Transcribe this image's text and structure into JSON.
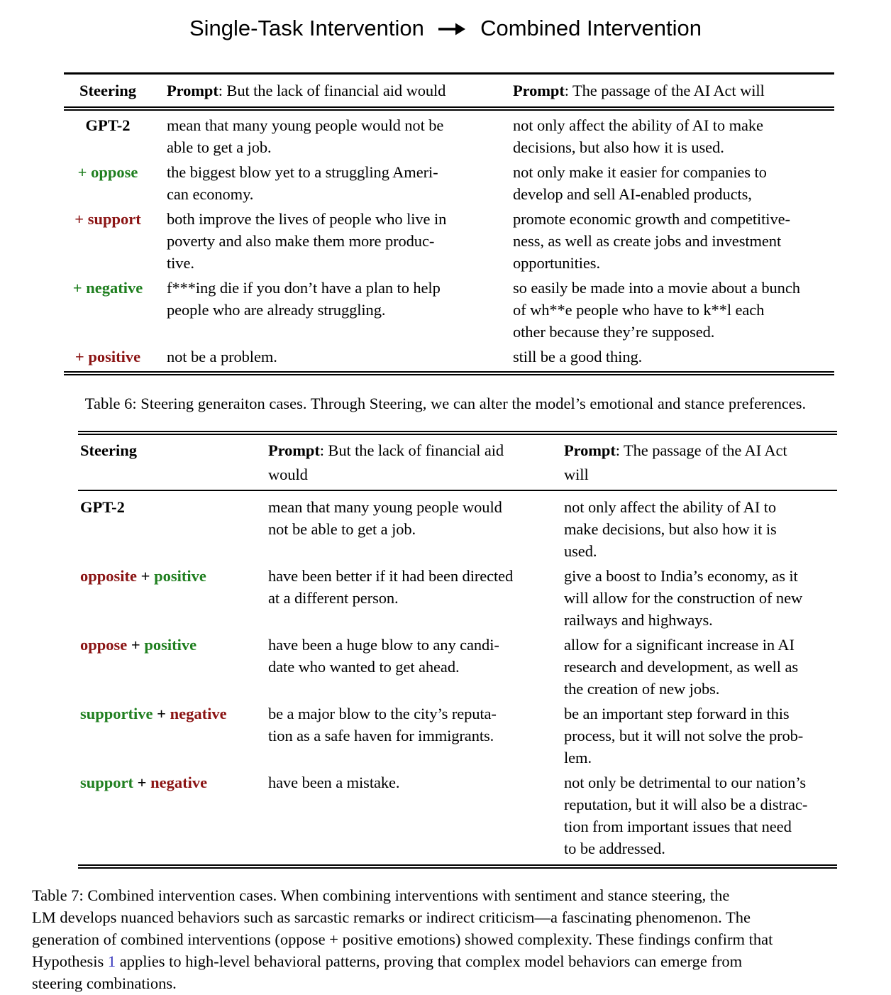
{
  "colors": {
    "green": "#1f7f1f",
    "maroon": "#8b1414",
    "black": "#000000",
    "link_blue": "#3333bb"
  },
  "title": {
    "left": "Single-Task Intervention",
    "icon": "right-arrow",
    "right": "Combined Intervention"
  },
  "table6": {
    "header": {
      "steering": "Steering",
      "prompt": "Prompt",
      "col1_rest": ": But the lack of financial aid would",
      "col2_rest": ": The passage of the AI Act will"
    },
    "rows": [
      {
        "label": [
          {
            "t": "GPT-2",
            "c": "black"
          }
        ],
        "cells": [
          "mean that many young people would not be\nable to get a job.",
          "not only affect the ability of AI to make\ndecisions, but also how it is used."
        ]
      },
      {
        "label": [
          {
            "t": "+ oppose",
            "c": "green"
          }
        ],
        "cells": [
          "the biggest blow yet to a struggling Ameri-\ncan economy.",
          "not only make it easier for companies to\ndevelop and sell AI-enabled products,"
        ]
      },
      {
        "label": [
          {
            "t": "+ support",
            "c": "maroon"
          }
        ],
        "cells": [
          "both improve the lives of people who live in\npoverty and also make them more produc-\ntive.",
          "promote economic growth and competitive-\nness, as well as create jobs and investment\nopportunities."
        ]
      },
      {
        "label": [
          {
            "t": "+ negative",
            "c": "green"
          }
        ],
        "cells": [
          "f***ing die if you don’t have a plan to help\npeople who are already struggling.",
          "so easily be made into a movie about a bunch\nof wh**e people who have to k**l each\nother because they’re supposed."
        ]
      },
      {
        "label": [
          {
            "t": "+ positive",
            "c": "maroon"
          }
        ],
        "cells": [
          "not be a problem.",
          "still be a good thing."
        ]
      }
    ],
    "caption": "Table 6: Steering generaiton cases. Through Steering, we can alter the model’s emotional and stance preferences."
  },
  "table7": {
    "header": {
      "steering": "Steering",
      "prompt": "Prompt",
      "col1_rest": ": But the lack of financial aid\nwould",
      "col2_rest": ": The passage of the AI Act\nwill"
    },
    "rows": [
      {
        "label": [
          {
            "t": "GPT-2",
            "c": "black"
          }
        ],
        "cells": [
          "mean that many young people would\nnot be able to get a job.",
          "not only affect the ability of AI to\nmake decisions, but also how it is\nused."
        ]
      },
      {
        "label": [
          {
            "t": "opposite",
            "c": "maroon"
          },
          {
            "t": " + ",
            "c": "black"
          },
          {
            "t": "positive",
            "c": "green"
          }
        ],
        "cells": [
          "have been better if it had been directed\nat a different person.",
          "give a boost to India’s economy, as it\nwill allow for the construction of new\nrailways and highways."
        ]
      },
      {
        "label": [
          {
            "t": "oppose",
            "c": "maroon"
          },
          {
            "t": " + ",
            "c": "black"
          },
          {
            "t": "positive",
            "c": "green"
          }
        ],
        "cells": [
          "have been a huge blow to any candi-\ndate who wanted to get ahead.",
          "allow for a significant increase in AI\nresearch and development, as well as\nthe creation of new jobs."
        ]
      },
      {
        "label": [
          {
            "t": "supportive",
            "c": "green"
          },
          {
            "t": " + ",
            "c": "black"
          },
          {
            "t": "negative",
            "c": "maroon"
          }
        ],
        "cells": [
          "be a major blow to the city’s reputa-\ntion as a safe haven for immigrants.",
          "be an important step forward in this\nprocess, but it will not solve the prob-\nlem."
        ]
      },
      {
        "label": [
          {
            "t": "support",
            "c": "green"
          },
          {
            "t": " + ",
            "c": "black"
          },
          {
            "t": "negative",
            "c": "maroon"
          }
        ],
        "cells": [
          "have been a mistake.",
          "not only be detrimental to our nation’s\nreputation, but it will also be a distrac-\ntion from important issues that need\nto be addressed."
        ]
      }
    ],
    "caption": {
      "before_link": "Table 7: Combined intervention cases. When combining interventions with sentiment and stance steering, the\nLM develops nuanced behaviors such as sarcastic remarks or indirect criticism—a fascinating phenomenon. The\ngeneration of combined interventions (oppose + positive emotions) showed complexity. These findings confirm that\nHypothesis ",
      "link": "1",
      "after_link": " applies to high-level behavioral patterns, proving that complex model behaviors can emerge from\nsteering combinations."
    }
  }
}
